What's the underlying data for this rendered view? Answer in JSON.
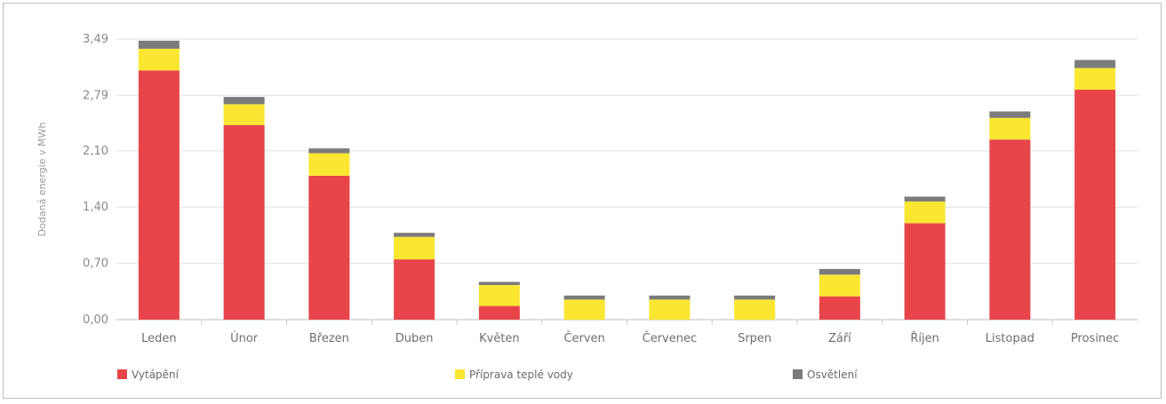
{
  "chart_data": {
    "type": "bar",
    "stacked": true,
    "ylabel": "Dodaná energie v MWh",
    "ylim": [
      0,
      3.49
    ],
    "yticks": [
      "0,00",
      "0,70",
      "1,40",
      "2,10",
      "2,79",
      "3,49"
    ],
    "ytick_values": [
      0,
      0.7,
      1.4,
      2.1,
      2.79,
      3.49
    ],
    "grid": true,
    "legend_position": "bottom",
    "categories": [
      "Leden",
      "Únor",
      "Březen",
      "Duben",
      "Květen",
      "Červen",
      "Červenec",
      "Srpen",
      "Září",
      "Říjen",
      "Listopad",
      "Prosinec"
    ],
    "series": [
      {
        "name": "Vytápění",
        "color": "#e8454a",
        "values": [
          3.1,
          2.42,
          1.79,
          0.75,
          0.17,
          0.0,
          0.0,
          0.0,
          0.29,
          1.2,
          2.24,
          2.86
        ]
      },
      {
        "name": "Příprava teplé vody",
        "color": "#fbe632",
        "values": [
          0.27,
          0.26,
          0.28,
          0.28,
          0.26,
          0.25,
          0.25,
          0.25,
          0.27,
          0.27,
          0.27,
          0.27
        ]
      },
      {
        "name": "Osvětlení",
        "color": "#7b7b7b",
        "values": [
          0.1,
          0.09,
          0.06,
          0.05,
          0.04,
          0.05,
          0.05,
          0.05,
          0.07,
          0.06,
          0.08,
          0.1
        ]
      }
    ]
  }
}
